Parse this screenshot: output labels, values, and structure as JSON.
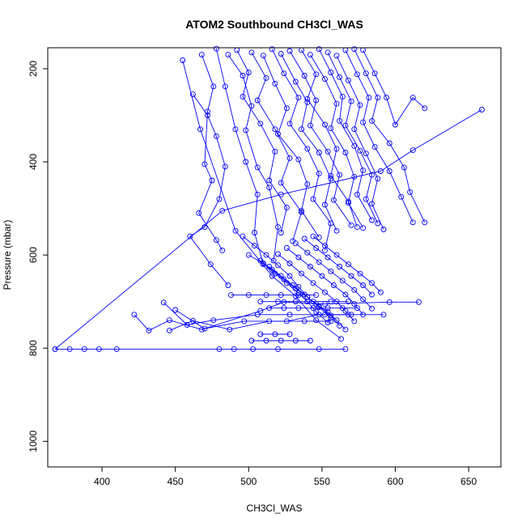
{
  "chart_data": {
    "type": "line",
    "title": "ATOM2 Southbound CH3Cl_WAS",
    "xlabel": "CH3Cl_WAS",
    "ylabel": "Pressure (mbar)",
    "xlim": [
      363,
      672
    ],
    "ylim": [
      1055,
      155
    ],
    "y_reversed": true,
    "x_ticks": [
      400,
      450,
      500,
      550,
      600,
      650
    ],
    "x_tick_labels": [
      "400",
      "450",
      "500",
      "550",
      "600",
      "650"
    ],
    "y_ticks": [
      200,
      400,
      600,
      800,
      1000
    ],
    "y_tick_labels": [
      "200",
      "400",
      "600",
      "800",
      "1000"
    ],
    "grid": false,
    "legend": "none",
    "line_color": "#0000ff",
    "marker": "open-circle",
    "series": [
      {
        "x": [
          368,
          378,
          388,
          398,
          410,
          480,
          490,
          503,
          520,
          548,
          566
        ],
        "y": [
          802,
          802,
          802,
          802,
          802,
          802,
          802,
          802,
          802,
          802,
          802
        ]
      },
      {
        "x": [
          368,
          482,
          522,
          590,
          612,
          659
        ],
        "y": [
          802,
          505,
          470,
          420,
          375,
          288
        ]
      },
      {
        "x": [
          422,
          432,
          446,
          468,
          508,
          524,
          552,
          596,
          616
        ],
        "y": [
          728,
          762,
          740,
          760,
          720,
          701,
          705,
          701,
          701
        ]
      },
      {
        "x": [
          442,
          458,
          476,
          506,
          528,
          552,
          570,
          592
        ],
        "y": [
          702,
          750,
          740,
          728,
          728,
          728,
          728,
          728
        ]
      },
      {
        "x": [
          446,
          462,
          487,
          514,
          538,
          556
        ],
        "y": [
          762,
          741,
          760,
          742,
          742,
          742
        ]
      },
      {
        "x": [
          450,
          470,
          497,
          526,
          548,
          568
        ],
        "y": [
          718,
          758,
          742,
          742,
          728,
          728
        ]
      },
      {
        "x": [
          455,
          467,
          491,
          516,
          532,
          546,
          563
        ],
        "y": [
          182,
          330,
          548,
          645,
          688,
          740,
          780
        ]
      },
      {
        "x": [
          462,
          472,
          478,
          484,
          480,
          470,
          460,
          474,
          486
        ],
        "y": [
          255,
          300,
          345,
          410,
          480,
          540,
          560,
          620,
          665
        ]
      },
      {
        "x": [
          468,
          476,
          472,
          470,
          475,
          466,
          478,
          482
        ],
        "y": [
          170,
          238,
          292,
          405,
          440,
          510,
          568,
          590
        ]
      },
      {
        "x": [
          478,
          484,
          491,
          498,
          506,
          504,
          510
        ],
        "y": [
          157,
          238,
          330,
          400,
          470,
          552,
          620
        ]
      },
      {
        "x": [
          486,
          496,
          502,
          498,
          506,
          514,
          520,
          517
        ],
        "y": [
          170,
          215,
          280,
          332,
          412,
          455,
          540,
          612
        ]
      },
      {
        "x": [
          492,
          500,
          496,
          508,
          518,
          514,
          526,
          522
        ],
        "y": [
          160,
          208,
          260,
          318,
          378,
          440,
          498,
          552
        ]
      },
      {
        "x": [
          502,
          512,
          506,
          518,
          528,
          522,
          536,
          530
        ],
        "y": [
          165,
          220,
          268,
          330,
          392,
          445,
          508,
          570
        ]
      },
      {
        "x": [
          510,
          518,
          526,
          520,
          534,
          540,
          536,
          548
        ],
        "y": [
          172,
          232,
          285,
          340,
          395,
          448,
          505,
          562
        ]
      },
      {
        "x": [
          516,
          524,
          534,
          528,
          540,
          548,
          544,
          556,
          552
        ],
        "y": [
          158,
          210,
          262,
          318,
          372,
          425,
          480,
          532,
          590
        ]
      },
      {
        "x": [
          522,
          532,
          540,
          536,
          548,
          556,
          552,
          560
        ],
        "y": [
          168,
          228,
          272,
          330,
          380,
          436,
          492,
          548
        ]
      },
      {
        "x": [
          528,
          538,
          546,
          542,
          554,
          562,
          558,
          570
        ],
        "y": [
          162,
          215,
          268,
          322,
          378,
          428,
          482,
          536
        ]
      },
      {
        "x": [
          536,
          546,
          540,
          552,
          560,
          556,
          568,
          574
        ],
        "y": [
          160,
          212,
          265,
          320,
          372,
          430,
          485,
          540
        ]
      },
      {
        "x": [
          542,
          552,
          560,
          556,
          566,
          572,
          568,
          578
        ],
        "y": [
          170,
          222,
          275,
          328,
          380,
          432,
          488,
          542
        ]
      },
      {
        "x": [
          548,
          556,
          564,
          562,
          572,
          578,
          574,
          584
        ],
        "y": [
          158,
          208,
          260,
          312,
          366,
          418,
          470,
          525
        ]
      },
      {
        "x": [
          554,
          562,
          570,
          566,
          576,
          584,
          580,
          588
        ],
        "y": [
          165,
          218,
          270,
          322,
          376,
          428,
          480,
          532
        ]
      },
      {
        "x": [
          560,
          568,
          576,
          572,
          580,
          588,
          584,
          592
        ],
        "y": [
          172,
          225,
          278,
          330,
          382,
          436,
          490,
          545
        ]
      },
      {
        "x": [
          566,
          574,
          582,
          578,
          586,
          596,
          604,
          612
        ],
        "y": [
          160,
          212,
          262,
          315,
          368,
          420,
          475,
          530
        ]
      },
      {
        "x": [
          572,
          580,
          588,
          584,
          596,
          606,
          610,
          620
        ],
        "y": [
          158,
          210,
          262,
          312,
          360,
          412,
          465,
          530
        ]
      },
      {
        "x": [
          578,
          586,
          594,
          600,
          612,
          620
        ],
        "y": [
          160,
          210,
          262,
          320,
          262,
          285
        ]
      },
      {
        "x": [
          496,
          504,
          512,
          520,
          528,
          534,
          540,
          548,
          556
        ],
        "y": [
          560,
          580,
          600,
          622,
          645,
          668,
          690,
          712,
          735
        ]
      },
      {
        "x": [
          500,
          510,
          518,
          526,
          534,
          540,
          546,
          554
        ],
        "y": [
          600,
          618,
          640,
          660,
          682,
          700,
          722,
          745
        ]
      },
      {
        "x": [
          508,
          516,
          524,
          532,
          540,
          548,
          556,
          562
        ],
        "y": [
          612,
          632,
          652,
          672,
          690,
          710,
          730,
          752
        ]
      },
      {
        "x": [
          514,
          522,
          530,
          538,
          546,
          554,
          560,
          566
        ],
        "y": [
          625,
          645,
          665,
          685,
          705,
          722,
          740,
          760
        ]
      },
      {
        "x": [
          520,
          528,
          536,
          544,
          552,
          560,
          566,
          572
        ],
        "y": [
          598,
          618,
          640,
          660,
          680,
          700,
          720,
          742
        ]
      },
      {
        "x": [
          526,
          534,
          542,
          550,
          558,
          566,
          572,
          578
        ],
        "y": [
          585,
          605,
          625,
          645,
          665,
          685,
          705,
          728
        ]
      },
      {
        "x": [
          532,
          540,
          548,
          556,
          564,
          572,
          578,
          584
        ],
        "y": [
          575,
          595,
          615,
          635,
          655,
          675,
          695,
          715
        ]
      },
      {
        "x": [
          538,
          546,
          554,
          562,
          570,
          578,
          584
        ],
        "y": [
          565,
          585,
          605,
          625,
          645,
          665,
          685
        ]
      },
      {
        "x": [
          544,
          552,
          560,
          568,
          576,
          584,
          590
        ],
        "y": [
          560,
          580,
          600,
          620,
          640,
          660,
          680
        ]
      },
      {
        "x": [
          488,
          500,
          512,
          522,
          534,
          546
        ],
        "y": [
          686,
          686,
          686,
          686,
          686,
          686
        ]
      },
      {
        "x": [
          508,
          520,
          532,
          544,
          556,
          568
        ],
        "y": [
          700,
          700,
          700,
          700,
          700,
          700
        ]
      },
      {
        "x": [
          514,
          524,
          534,
          544,
          554,
          564,
          574
        ],
        "y": [
          714,
          714,
          714,
          714,
          714,
          714,
          714
        ]
      },
      {
        "x": [
          502,
          512,
          522,
          532,
          542
        ],
        "y": [
          784,
          784,
          784,
          784,
          784
        ]
      },
      {
        "x": [
          508,
          518,
          528
        ],
        "y": [
          770,
          770,
          770
        ]
      }
    ]
  }
}
